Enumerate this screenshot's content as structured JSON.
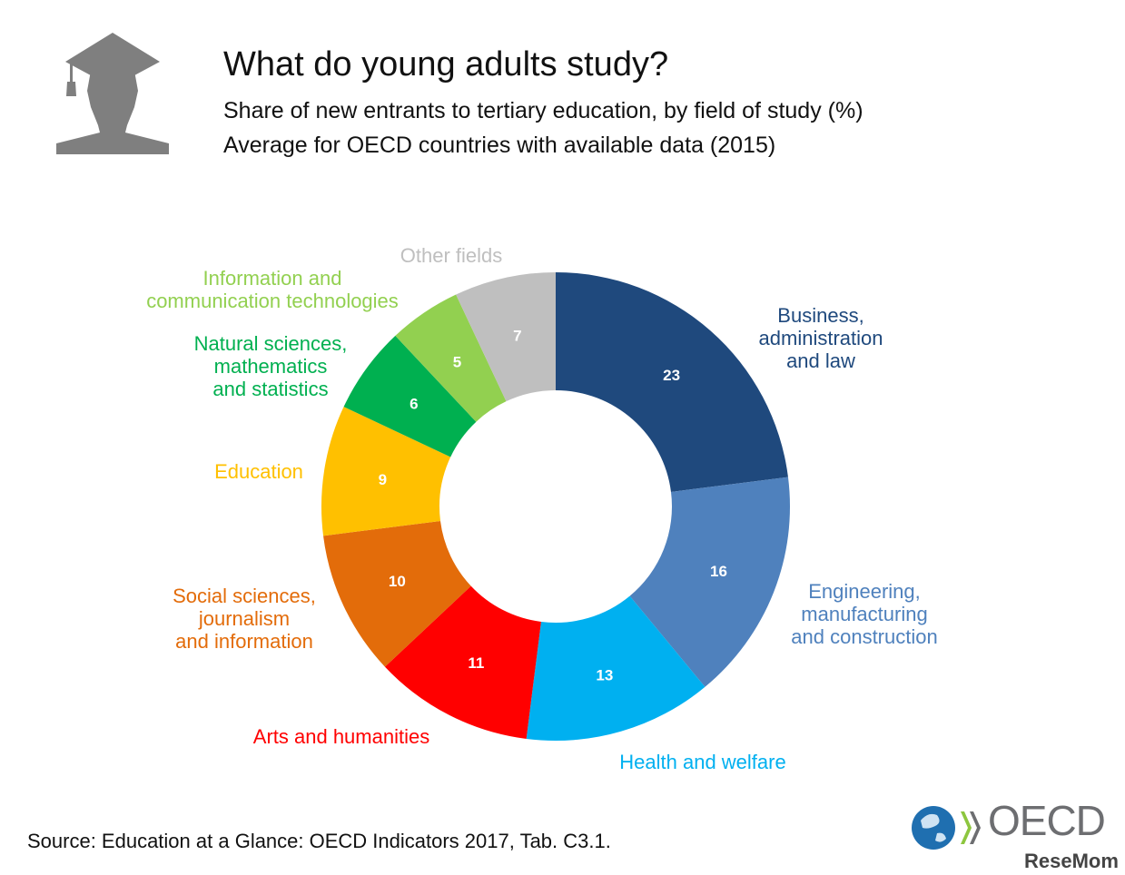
{
  "header": {
    "title": "What do young adults study?",
    "subtitle_1": "Share of new entrants to tertiary education, by field of study (%)",
    "subtitle_2": "Average for OECD countries with available data (2015)"
  },
  "footer": {
    "source": "Source: Education at a Glance: OECD Indicators 2017, Tab. C3.1.",
    "logo": "OECD",
    "watermark": "ReseMom"
  },
  "chart_data": {
    "type": "pie",
    "donut": true,
    "title": "What do young adults study?",
    "unit": "%",
    "start": "top, clockwise",
    "slices": [
      {
        "label": [
          "Business,",
          "administration",
          "and law"
        ],
        "value": 23,
        "color": "#1f497d"
      },
      {
        "label": [
          "Engineering,",
          "manufacturing",
          "and construction"
        ],
        "value": 16,
        "color": "#4f81bd"
      },
      {
        "label": [
          "Health and welfare"
        ],
        "value": 13,
        "color": "#00b0f0"
      },
      {
        "label": [
          "Arts and humanities"
        ],
        "value": 11,
        "color": "#ff0000"
      },
      {
        "label": [
          "Social sciences,",
          "journalism",
          "and information"
        ],
        "value": 10,
        "color": "#e36c0a"
      },
      {
        "label": [
          "Education"
        ],
        "value": 9,
        "color": "#ffc000"
      },
      {
        "label": [
          "Natural sciences,",
          "mathematics",
          "and statistics"
        ],
        "value": 6,
        "color": "#00b050"
      },
      {
        "label": [
          "Information and",
          "communication technologies"
        ],
        "value": 5,
        "color": "#92d050"
      },
      {
        "label": [
          "Other fields"
        ],
        "value": 7,
        "color": "#bfbfbf"
      }
    ]
  }
}
